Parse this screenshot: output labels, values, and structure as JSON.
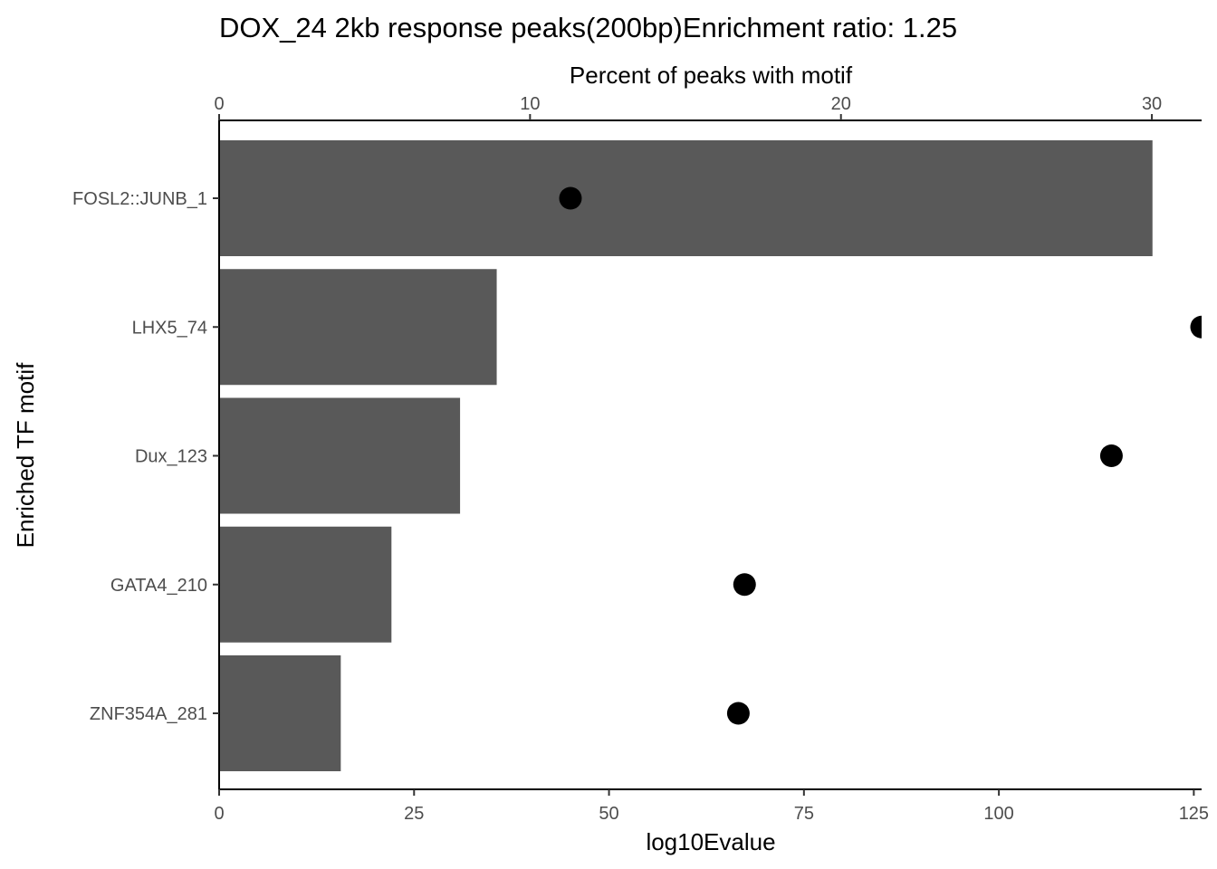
{
  "chart_data": {
    "type": "bar",
    "title": "DOX_24 2kb response peaks(200bp)Enrichment ratio: 1.25",
    "ylabel": "Enriched TF motif",
    "categories": [
      "FOSL2::JUNB_1",
      "LHX5_74",
      "Dux_123",
      "GATA4_210",
      "ZNF354A_281"
    ],
    "bar_axis": {
      "label": "log10Evalue",
      "position": "bottom",
      "ticks": [
        0,
        25,
        50,
        75,
        100,
        125
      ],
      "range": [
        0,
        126
      ]
    },
    "point_axis": {
      "label": "Percent of peaks with motif",
      "position": "top",
      "ticks": [
        0,
        10,
        20,
        30
      ],
      "range": [
        0,
        31.6
      ]
    },
    "series": [
      {
        "name": "log10Evalue",
        "mark": "bar",
        "color": "#595959",
        "values": [
          119.7,
          35.6,
          30.9,
          22.1,
          15.6
        ]
      },
      {
        "name": "Percent of peaks with motif",
        "mark": "point",
        "color": "#000000",
        "values": [
          11.3,
          31.6,
          28.7,
          16.9,
          16.7
        ]
      }
    ],
    "grid": false,
    "legend": "none"
  }
}
